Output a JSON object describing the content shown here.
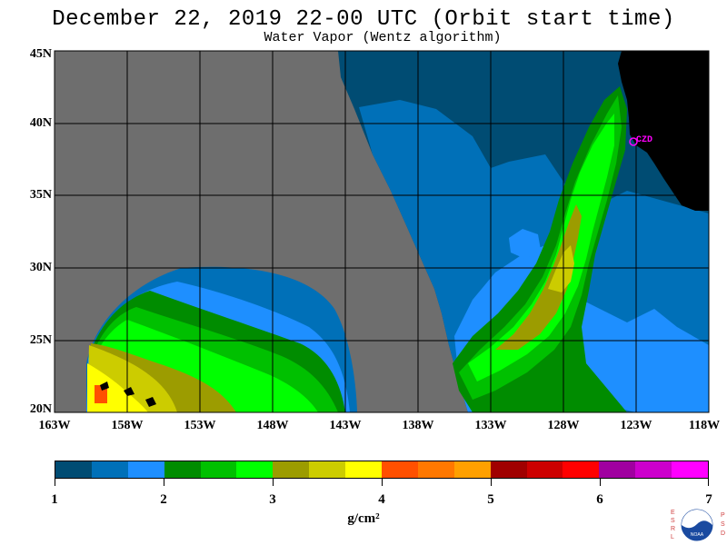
{
  "header": {
    "title": "December 22, 2019  22-00 UTC  (Orbit start time)",
    "subtitle": "Water Vapor (Wentz algorithm)"
  },
  "map": {
    "lat_labels": [
      "45N",
      "40N",
      "35N",
      "30N",
      "25N",
      "20N"
    ],
    "lon_labels": [
      "163W",
      "158W",
      "153W",
      "148W",
      "143W",
      "138W",
      "133W",
      "128W",
      "123W",
      "118W"
    ],
    "lat_range": [
      20,
      45
    ],
    "lon_range": [
      -163,
      -118
    ],
    "station_label": "CZD",
    "colors": {
      "no_data": "#6e6e6e",
      "land": "#000000",
      "grid": "#000000",
      "station": "#ff00ff"
    }
  },
  "colorbar": {
    "units": "g/cm²",
    "tick_labels": [
      "1",
      "2",
      "3",
      "4",
      "5",
      "6",
      "7"
    ],
    "range": [
      1,
      7
    ],
    "colors": [
      "#004c73",
      "#0070b8",
      "#1e8fff",
      "#008c00",
      "#00c000",
      "#00ff00",
      "#9c9c00",
      "#cccc00",
      "#ffff00",
      "#ff5000",
      "#ff7800",
      "#ffa000",
      "#a00000",
      "#cc0000",
      "#ff0000",
      "#a000a0",
      "#cc00cc",
      "#ff00ff"
    ]
  },
  "logo": {
    "left_letters": [
      "E",
      "S",
      "R",
      "L"
    ],
    "right_letters": [
      "P",
      "S",
      "D"
    ],
    "name": "NOAA"
  }
}
